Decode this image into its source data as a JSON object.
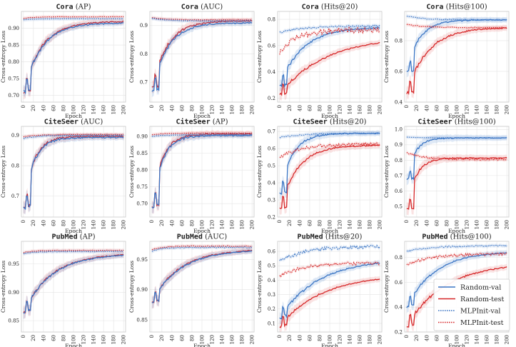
{
  "chart_data": {
    "type": "line",
    "xlabel": "Epoch",
    "ylabel": "Cross-entropy Loss",
    "x_ticks": [
      0,
      20,
      40,
      60,
      80,
      100,
      120,
      140,
      160,
      180,
      200
    ],
    "legend": {
      "placement": "inside bottom-right of PubMed (Hits@100) panel",
      "entries": [
        {
          "name": "Random-val",
          "color": "#3a75c4",
          "style": "solid"
        },
        {
          "name": "Random-test",
          "color": "#d62728",
          "style": "solid"
        },
        {
          "name": "MLPInit-val",
          "color": "#3a75c4",
          "style": "dotted"
        },
        {
          "name": "MLPInit-test",
          "color": "#d62728",
          "style": "dotted"
        }
      ]
    },
    "panels": [
      {
        "dataset": "Cora",
        "metric": "(AP)",
        "ylim": [
          0.68,
          0.95
        ],
        "yticks": [
          0.7,
          0.75,
          0.8,
          0.85,
          0.9
        ],
        "ytick_labels": [
          "0.70",
          "0.75",
          "0.80",
          "0.85",
          "0.90"
        ],
        "series": {
          "rv": {
            "start": 0.71,
            "end": 0.916,
            "k": 0.028,
            "dip": 0.03
          },
          "rt": {
            "start": 0.71,
            "end": 0.92,
            "k": 0.028,
            "dip": 0.03
          },
          "mv": {
            "start": 0.925,
            "end": 0.928,
            "k": 0.05
          },
          "mt": {
            "start": 0.929,
            "end": 0.934,
            "k": 0.05
          }
        }
      },
      {
        "dataset": "Cora",
        "metric": "(AUC)",
        "ylim": [
          0.63,
          0.95
        ],
        "yticks": [
          0.7,
          0.8,
          0.9
        ],
        "ytick_labels": [
          "0.7",
          "0.8",
          "0.9"
        ],
        "series": {
          "rv": {
            "start": 0.67,
            "end": 0.91,
            "k": 0.032,
            "dip": 0.03
          },
          "rt": {
            "start": 0.68,
            "end": 0.917,
            "k": 0.032,
            "dip": 0.03
          },
          "mv": {
            "start": 0.925,
            "end": 0.916,
            "k": 0.03
          },
          "mt": {
            "start": 0.928,
            "end": 0.92,
            "k": 0.03
          }
        }
      },
      {
        "dataset": "Cora",
        "metric": "(Hits@20)",
        "ylim": [
          0.17,
          0.86
        ],
        "yticks": [
          0.2,
          0.4,
          0.6,
          0.8
        ],
        "ytick_labels": [
          "0.2",
          "0.4",
          "0.6",
          "0.8"
        ],
        "series": {
          "rv": {
            "start": 0.3,
            "end": 0.74,
            "k": 0.022,
            "dip": 0.05
          },
          "rt": {
            "start": 0.23,
            "end": 0.67,
            "k": 0.011,
            "dip": 0.04
          },
          "mv": {
            "start": 0.7,
            "end": 0.75,
            "k": 0.02
          },
          "mt": {
            "start": 0.55,
            "end": 0.72,
            "k": 0.03
          }
        }
      },
      {
        "dataset": "Cora",
        "metric": "(Hits@100)",
        "ylim": [
          0.4,
          0.99
        ],
        "yticks": [
          0.4,
          0.6,
          0.8
        ],
        "ytick_labels": [
          "0.4",
          "0.6",
          "0.8"
        ],
        "series": {
          "rv": {
            "start": 0.6,
            "end": 0.935,
            "k": 0.04,
            "dip": 0.05
          },
          "rt": {
            "start": 0.46,
            "end": 0.885,
            "k": 0.024,
            "dip": 0.05
          },
          "mv": {
            "start": 0.96,
            "end": 0.935,
            "k": 0.03
          },
          "mt": {
            "start": 0.905,
            "end": 0.885,
            "k": 0.03
          }
        }
      },
      {
        "dataset": "CiteSeer",
        "metric": "(AUC)",
        "ylim": [
          0.63,
          0.93
        ],
        "yticks": [
          0.7,
          0.8,
          0.9
        ],
        "ytick_labels": [
          "0.7",
          "0.8",
          "0.9"
        ],
        "series": {
          "rv": {
            "start": 0.66,
            "end": 0.893,
            "k": 0.05,
            "dip": 0.02
          },
          "rt": {
            "start": 0.66,
            "end": 0.897,
            "k": 0.05,
            "dip": 0.02
          },
          "mv": {
            "start": 0.89,
            "end": 0.9,
            "k": 0.04
          },
          "mt": {
            "start": 0.895,
            "end": 0.903,
            "k": 0.04
          }
        }
      },
      {
        "dataset": "CiteSeer",
        "metric": "(AP)",
        "ylim": [
          0.66,
          0.93
        ],
        "yticks": [
          0.7,
          0.75,
          0.8,
          0.85,
          0.9
        ],
        "ytick_labels": [
          "0.70",
          "0.75",
          "0.80",
          "0.85",
          "0.90"
        ],
        "series": {
          "rv": {
            "start": 0.69,
            "end": 0.903,
            "k": 0.05,
            "dip": 0.02
          },
          "rt": {
            "start": 0.69,
            "end": 0.907,
            "k": 0.05,
            "dip": 0.02
          },
          "mv": {
            "start": 0.9,
            "end": 0.905,
            "k": 0.04
          },
          "mt": {
            "start": 0.905,
            "end": 0.91,
            "k": 0.04
          }
        }
      },
      {
        "dataset": "CiteSeer",
        "metric": "(Hits@20)",
        "ylim": [
          0.2,
          0.73
        ],
        "yticks": [
          0.2,
          0.3,
          0.4,
          0.5,
          0.6,
          0.7
        ],
        "ytick_labels": [
          "0.2",
          "0.3",
          "0.4",
          "0.5",
          "0.6",
          "0.7"
        ],
        "series": {
          "rv": {
            "start": 0.34,
            "end": 0.69,
            "k": 0.04,
            "dip": 0.03
          },
          "rt": {
            "start": 0.25,
            "end": 0.62,
            "k": 0.028,
            "dip": 0.03
          },
          "mv": {
            "start": 0.665,
            "end": 0.69,
            "k": 0.02
          },
          "mt": {
            "start": 0.545,
            "end": 0.625,
            "k": 0.025
          }
        }
      },
      {
        "dataset": "CiteSeer",
        "metric": "(Hits@100)",
        "ylim": [
          0.43,
          1.02
        ],
        "yticks": [
          0.5,
          0.6,
          0.7,
          0.8,
          0.9,
          1.0
        ],
        "ytick_labels": [
          "0.5",
          "0.6",
          "0.7",
          "0.8",
          "0.9",
          "1.0"
        ],
        "series": {
          "rv": {
            "start": 0.68,
            "end": 0.945,
            "k": 0.06,
            "dip": 0.05
          },
          "rt": {
            "start": 0.48,
            "end": 0.815,
            "k": 0.055,
            "dip": 0.05
          },
          "mv": {
            "start": 0.95,
            "end": 0.945,
            "k": 0.03
          },
          "mt": {
            "start": 0.85,
            "end": 0.805,
            "k": 0.03
          }
        }
      },
      {
        "dataset": "PubMed",
        "metric": "(AP)",
        "ylim": [
          0.83,
          0.99
        ],
        "yticks": [
          0.85,
          0.9,
          0.95
        ],
        "ytick_labels": [
          "0.85",
          "0.90",
          "0.95"
        ],
        "series": {
          "rv": {
            "start": 0.865,
            "end": 0.968,
            "k": 0.018,
            "dip": 0.02
          },
          "rt": {
            "start": 0.865,
            "end": 0.969,
            "k": 0.018,
            "dip": 0.02
          },
          "mv": {
            "start": 0.968,
            "end": 0.972,
            "k": 0.05
          },
          "mt": {
            "start": 0.97,
            "end": 0.974,
            "k": 0.05
          }
        }
      },
      {
        "dataset": "PubMed",
        "metric": "(AUC)",
        "ylim": [
          0.83,
          0.98
        ],
        "yticks": [
          0.85,
          0.9,
          0.95
        ],
        "ytick_labels": [
          "0.85",
          "0.90",
          "0.95"
        ],
        "series": {
          "rv": {
            "start": 0.88,
            "end": 0.966,
            "k": 0.018,
            "dip": 0.025
          },
          "rt": {
            "start": 0.88,
            "end": 0.967,
            "k": 0.018,
            "dip": 0.025
          },
          "mv": {
            "start": 0.964,
            "end": 0.97,
            "k": 0.05
          },
          "mt": {
            "start": 0.966,
            "end": 0.972,
            "k": 0.05
          }
        }
      },
      {
        "dataset": "PubMed",
        "metric": "(Hits@20)",
        "ylim": [
          0.04,
          0.67
        ],
        "yticks": [
          0.1,
          0.2,
          0.3,
          0.4,
          0.5,
          0.6
        ],
        "ytick_labels": [
          "0.1",
          "0.2",
          "0.3",
          "0.4",
          "0.5",
          "0.6"
        ],
        "series": {
          "rv": {
            "start": 0.14,
            "end": 0.55,
            "k": 0.013,
            "dip": 0.02
          },
          "rt": {
            "start": 0.08,
            "end": 0.44,
            "k": 0.012,
            "dip": 0.02
          },
          "mv": {
            "start": 0.53,
            "end": 0.635,
            "k": 0.02
          },
          "mt": {
            "start": 0.43,
            "end": 0.52,
            "k": 0.02
          }
        }
      },
      {
        "dataset": "PubMed",
        "metric": "(Hits@100)",
        "ylim": [
          0.2,
          0.93
        ],
        "yticks": [
          0.2,
          0.4,
          0.6,
          0.8
        ],
        "ytick_labels": [
          "0.2",
          "0.4",
          "0.6",
          "0.8"
        ],
        "series": {
          "rv": {
            "start": 0.4,
            "end": 0.85,
            "k": 0.018,
            "dip": 0.02
          },
          "rt": {
            "start": 0.25,
            "end": 0.76,
            "k": 0.013,
            "dip": 0.02
          },
          "mv": {
            "start": 0.85,
            "end": 0.895,
            "k": 0.02
          },
          "mt": {
            "start": 0.74,
            "end": 0.83,
            "k": 0.02
          }
        }
      }
    ]
  }
}
